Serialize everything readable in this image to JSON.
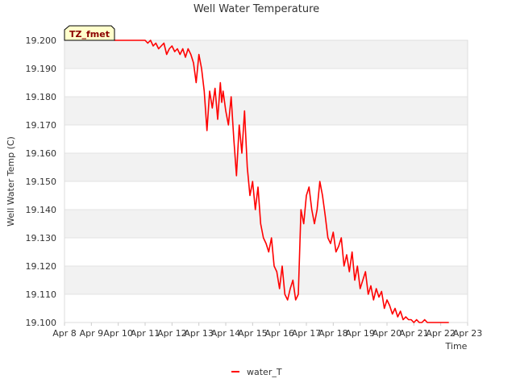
{
  "chart_data": {
    "type": "line",
    "title": "Well Water Temperature",
    "xlabel": "Time",
    "ylabel": "Well Water Temp (C)",
    "badge": "TZ_fmet",
    "x_ticks": [
      "Apr 8",
      "Apr 9",
      "Apr 10",
      "Apr 11",
      "Apr 12",
      "Apr 13",
      "Apr 14",
      "Apr 15",
      "Apr 16",
      "Apr 17",
      "Apr 18",
      "Apr 19",
      "Apr 20",
      "Apr 21",
      "Apr 22",
      "Apr 23"
    ],
    "y_ticks": [
      "19.100",
      "19.110",
      "19.120",
      "19.130",
      "19.140",
      "19.150",
      "19.160",
      "19.170",
      "19.180",
      "19.190",
      "19.200"
    ],
    "xlim": [
      0,
      15
    ],
    "ylim": [
      19.1,
      19.2
    ],
    "grid": true,
    "legend_position": "bottom",
    "series": [
      {
        "name": "water_T",
        "color": "#ff0000",
        "x": [
          1.85,
          3.0,
          3.1,
          3.2,
          3.3,
          3.4,
          3.5,
          3.6,
          3.7,
          3.8,
          3.9,
          4.0,
          4.1,
          4.2,
          4.3,
          4.4,
          4.5,
          4.6,
          4.7,
          4.8,
          4.9,
          5.0,
          5.1,
          5.2,
          5.25,
          5.3,
          5.4,
          5.5,
          5.6,
          5.7,
          5.8,
          5.85,
          5.9,
          6.0,
          6.1,
          6.2,
          6.3,
          6.4,
          6.5,
          6.6,
          6.7,
          6.8,
          6.9,
          7.0,
          7.1,
          7.2,
          7.3,
          7.4,
          7.5,
          7.6,
          7.7,
          7.8,
          7.9,
          8.0,
          8.1,
          8.2,
          8.3,
          8.4,
          8.5,
          8.6,
          8.7,
          8.8,
          8.9,
          9.0,
          9.1,
          9.2,
          9.3,
          9.4,
          9.5,
          9.6,
          9.7,
          9.8,
          9.9,
          10.0,
          10.1,
          10.2,
          10.3,
          10.4,
          10.5,
          10.6,
          10.7,
          10.8,
          10.9,
          11.0,
          11.1,
          11.2,
          11.3,
          11.4,
          11.5,
          11.6,
          11.7,
          11.8,
          11.9,
          12.0,
          12.1,
          12.2,
          12.3,
          12.4,
          12.5,
          12.6,
          12.7,
          12.8,
          12.9,
          13.0,
          13.1,
          13.2,
          13.3,
          13.4,
          13.5,
          13.6,
          13.7,
          13.8,
          13.9,
          14.0,
          14.1,
          14.2,
          14.3
        ],
        "values": [
          19.2,
          19.2,
          19.199,
          19.2,
          19.198,
          19.199,
          19.197,
          19.198,
          19.199,
          19.195,
          19.197,
          19.198,
          19.196,
          19.197,
          19.195,
          19.197,
          19.194,
          19.197,
          19.195,
          19.192,
          19.185,
          19.195,
          19.19,
          19.182,
          19.175,
          19.168,
          19.182,
          19.176,
          19.183,
          19.172,
          19.185,
          19.178,
          19.182,
          19.175,
          19.17,
          19.18,
          19.165,
          19.152,
          19.17,
          19.16,
          19.175,
          19.155,
          19.145,
          19.15,
          19.14,
          19.148,
          19.135,
          19.13,
          19.128,
          19.125,
          19.13,
          19.12,
          19.118,
          19.112,
          19.12,
          19.11,
          19.108,
          19.112,
          19.115,
          19.108,
          19.11,
          19.14,
          19.135,
          19.145,
          19.148,
          19.14,
          19.135,
          19.14,
          19.15,
          19.145,
          19.138,
          19.13,
          19.128,
          19.132,
          19.125,
          19.127,
          19.13,
          19.12,
          19.124,
          19.118,
          19.125,
          19.115,
          19.12,
          19.112,
          19.115,
          19.118,
          19.11,
          19.113,
          19.108,
          19.112,
          19.109,
          19.111,
          19.105,
          19.108,
          19.106,
          19.103,
          19.105,
          19.102,
          19.104,
          19.101,
          19.102,
          19.101,
          19.101,
          19.1,
          19.101,
          19.1,
          19.1,
          19.101,
          19.1,
          19.1,
          19.1,
          19.1,
          19.1,
          19.1,
          19.1,
          19.1,
          19.1
        ]
      }
    ]
  }
}
